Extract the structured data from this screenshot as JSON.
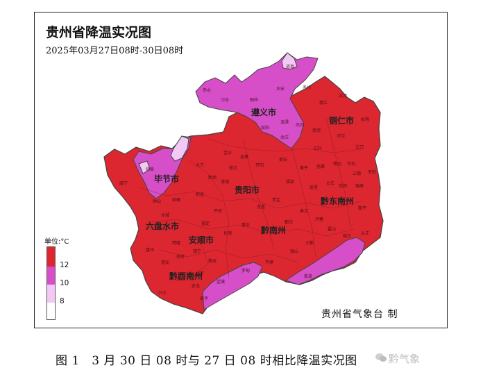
{
  "map": {
    "title": "贵州省降温实况图",
    "subtitle": "2025年03月27日08时-30日08时",
    "cities": [
      {
        "name": "遵义市"
      },
      {
        "name": "铜仁市"
      },
      {
        "name": "毕节市"
      },
      {
        "name": "贵阳市"
      },
      {
        "name": "黔东南州"
      },
      {
        "name": "六盘水市"
      },
      {
        "name": "安顺市"
      },
      {
        "name": "黔南州"
      },
      {
        "name": "黔西南州"
      }
    ],
    "counties": [
      "正安",
      "道真",
      "务川",
      "习水",
      "赤水",
      "桐梓",
      "绥阳",
      "湄潭",
      "凤冈",
      "余庆",
      "德江",
      "思南",
      "沿河",
      "印江",
      "石阡",
      "江口",
      "松桃",
      "大方",
      "黔西",
      "金沙",
      "织金",
      "纳雍",
      "赫章",
      "威宁",
      "钟山",
      "水城",
      "盘州",
      "普定",
      "镇宁",
      "关岭",
      "紫云",
      "平坝",
      "清镇",
      "修文",
      "开阳",
      "息烽",
      "瓮安",
      "福泉",
      "贵定",
      "龙里",
      "惠水",
      "长顺",
      "罗甸",
      "平塘",
      "独山",
      "三都",
      "荔波",
      "都匀",
      "麻江",
      "丹寨",
      "雷山",
      "榕江",
      "从江",
      "黎平",
      "锦屏",
      "天柱",
      "剑河",
      "台江",
      "凯里",
      "黄平",
      "施秉",
      "镇远",
      "岑巩",
      "三穗",
      "兴义",
      "兴仁",
      "安龙",
      "贞丰",
      "望谟",
      "册亨",
      "普安",
      "晴隆"
    ],
    "colors": {
      "ge12": "#dc2630",
      "10to12": "#d64ec8",
      "8to10": "#f2c8f4",
      "lt8": "#ffffff",
      "border": "#555555"
    },
    "legend": {
      "unit": "单位:°C",
      "labels": [
        "12",
        "10",
        "8"
      ]
    },
    "credit": "贵州省气象台 制"
  },
  "caption": "图 1　3 月 30 日 08 时与 27 日 08 时相比降温实况图",
  "watermark": "黔气象"
}
